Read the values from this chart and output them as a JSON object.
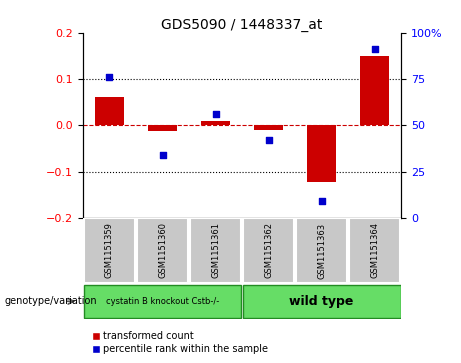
{
  "title": "GDS5090 / 1448337_at",
  "samples": [
    "GSM1151359",
    "GSM1151360",
    "GSM1151361",
    "GSM1151362",
    "GSM1151363",
    "GSM1151364"
  ],
  "red_bars": [
    0.06,
    -0.012,
    0.01,
    -0.01,
    -0.122,
    0.15
  ],
  "blue_dots": [
    76,
    34,
    56,
    42,
    9,
    91
  ],
  "group1_label": "cystatin B knockout Cstb-/-",
  "group2_label": "wild type",
  "group1_indices": [
    0,
    1,
    2
  ],
  "group2_indices": [
    3,
    4,
    5
  ],
  "genotype_label": "genotype/variation",
  "legend1": "transformed count",
  "legend2": "percentile rank within the sample",
  "ylim_left": [
    -0.2,
    0.2
  ],
  "ylim_right": [
    0,
    100
  ],
  "yticks_left": [
    -0.2,
    -0.1,
    0.0,
    0.1,
    0.2
  ],
  "yticks_right": [
    0,
    25,
    50,
    75,
    100
  ],
  "bar_color": "#cc0000",
  "dot_color": "#0000cc",
  "hline_color": "#cc0000",
  "grid_color": "#000000",
  "bg_color": "#ffffff",
  "plot_bg": "#ffffff",
  "group1_color": "#66dd66",
  "group2_color": "#66dd66",
  "gray_color": "#c8c8c8"
}
